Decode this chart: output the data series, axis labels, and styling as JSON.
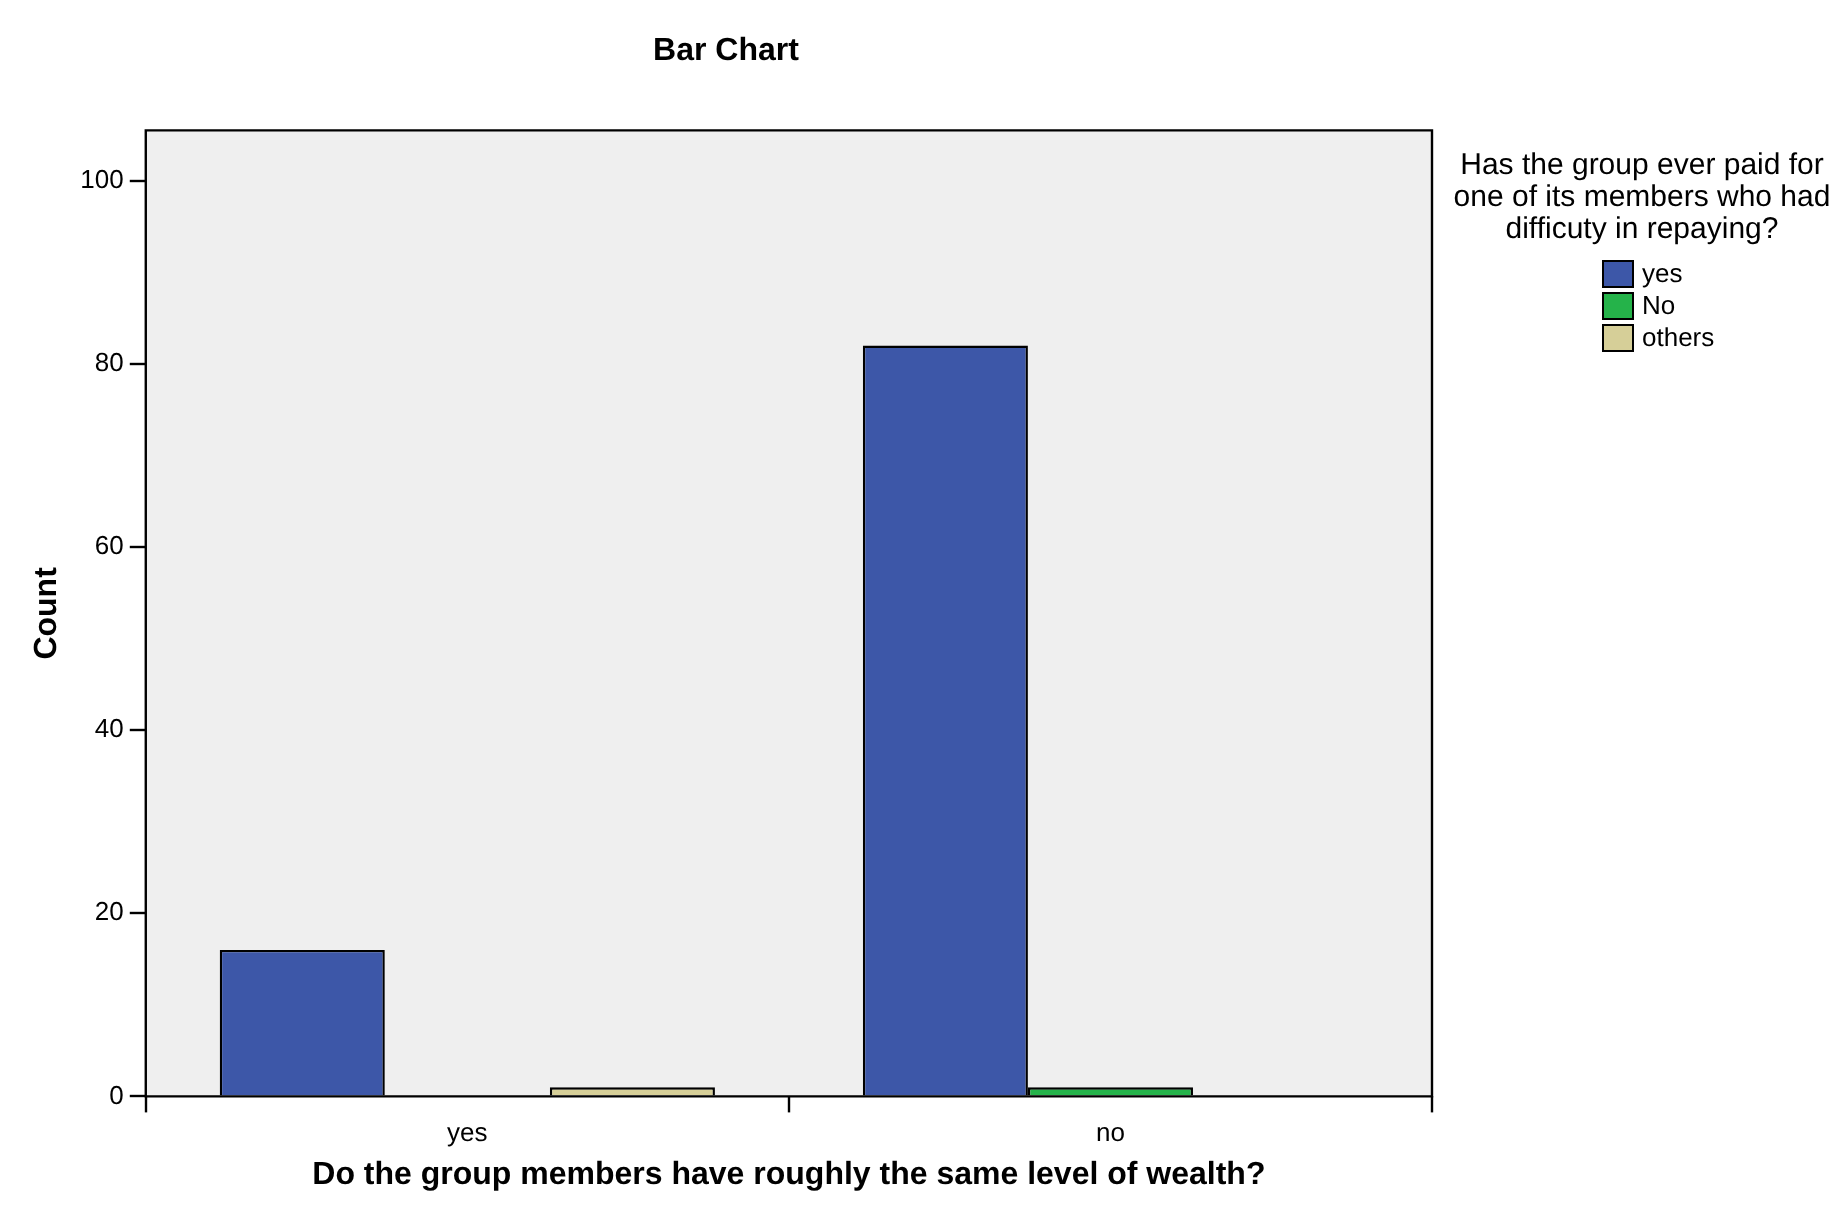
{
  "chart_data": {
    "type": "bar",
    "title": "Bar Chart",
    "xlabel": "Do the group members have roughly the same level of wealth?",
    "ylabel": "Count",
    "legend_title": "Has the group ever paid for one of its members who had difficuty in repaying?",
    "categories": [
      "yes",
      "no"
    ],
    "series": [
      {
        "name": "yes",
        "color": "#3d57a8",
        "values": [
          16,
          82
        ]
      },
      {
        "name": "No",
        "color": "#25b34a",
        "values": [
          0,
          1
        ]
      },
      {
        "name": "others",
        "color": "#d6cf98",
        "values": [
          1,
          0
        ]
      }
    ],
    "ylim": [
      0,
      105.5
    ],
    "yticks": [
      0,
      20,
      40,
      60,
      80,
      100
    ],
    "grid": false,
    "legend": "right"
  }
}
